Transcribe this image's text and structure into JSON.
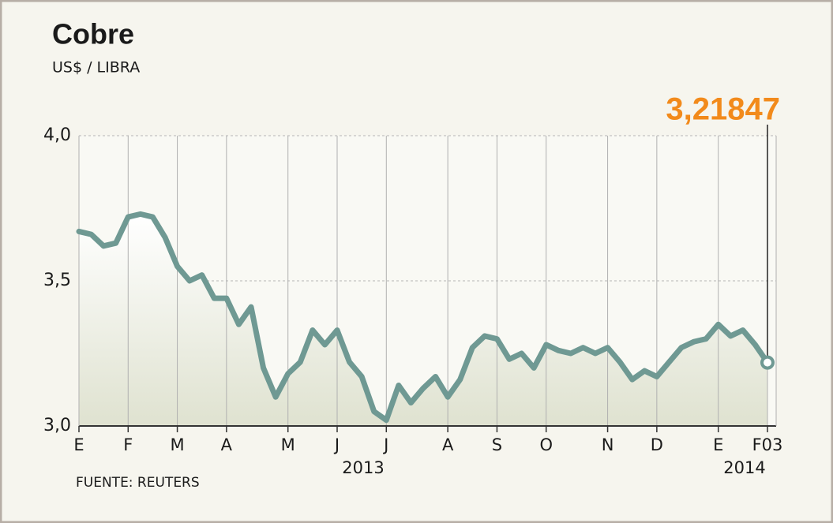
{
  "chart_data": {
    "type": "line",
    "title": "Cobre",
    "subtitle": "US$ / LIBRA",
    "source": "FUENTE: REUTERS",
    "year_labels": [
      "2013",
      "2014"
    ],
    "categories": [
      "E",
      null,
      null,
      null,
      "F",
      null,
      null,
      null,
      "M",
      null,
      null,
      null,
      "A",
      null,
      null,
      null,
      null,
      "M",
      null,
      null,
      null,
      "J",
      null,
      null,
      null,
      "J",
      null,
      null,
      null,
      null,
      "A",
      null,
      null,
      null,
      "S",
      null,
      null,
      null,
      "O",
      null,
      null,
      null,
      null,
      "N",
      null,
      null,
      null,
      "D",
      null,
      null,
      null,
      null,
      "E",
      null,
      null,
      null,
      "F03"
    ],
    "values": [
      3.67,
      3.66,
      3.62,
      3.63,
      3.72,
      3.73,
      3.72,
      3.65,
      3.55,
      3.5,
      3.52,
      3.44,
      3.44,
      3.35,
      3.41,
      3.2,
      3.1,
      3.18,
      3.22,
      3.33,
      3.28,
      3.33,
      3.22,
      3.17,
      3.05,
      3.02,
      3.14,
      3.08,
      3.13,
      3.17,
      3.1,
      3.16,
      3.27,
      3.31,
      3.3,
      3.23,
      3.25,
      3.2,
      3.28,
      3.26,
      3.25,
      3.27,
      3.25,
      3.27,
      3.22,
      3.16,
      3.19,
      3.17,
      3.22,
      3.27,
      3.29,
      3.3,
      3.35,
      3.31,
      3.33,
      3.28,
      3.21847
    ],
    "value_labels": [
      null,
      null,
      null,
      null,
      null,
      null,
      null,
      null,
      null,
      null,
      null,
      null,
      null,
      null,
      null,
      null,
      null,
      null,
      null,
      null,
      null,
      null,
      null,
      null,
      null,
      null,
      null,
      null,
      null,
      null,
      null,
      null,
      null,
      null,
      null,
      null,
      null,
      null,
      null,
      null,
      null,
      null,
      null,
      null,
      null,
      null,
      null,
      null,
      null,
      null,
      null,
      null,
      null,
      null,
      null,
      null,
      "3,21847"
    ],
    "color": "#6f9993",
    "label_color": "#f28a1b",
    "ylim": [
      3.0,
      4.0
    ],
    "yticks": [
      {
        "value": 3.0,
        "label": "3,0"
      },
      {
        "value": 3.5,
        "label": "3,5"
      },
      {
        "value": 4.0,
        "label": "4,0"
      }
    ],
    "grid": true
  }
}
